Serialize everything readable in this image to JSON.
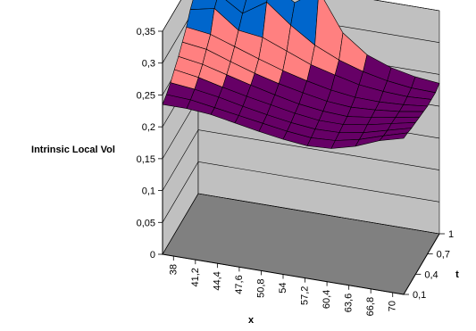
{
  "chart_data": {
    "type": "surface",
    "title": "",
    "zlabel": "Intrinsic Local Vol",
    "xlabel": "x",
    "tlabel": "t",
    "x": [
      38,
      41.2,
      44.4,
      47.6,
      50.8,
      54,
      57.2,
      60.4,
      63.6,
      66.8,
      70
    ],
    "x_tick_labels": [
      "38",
      "41,2",
      "44,4",
      "47,6",
      "50,8",
      "54",
      "57,2",
      "60,4",
      "63,6",
      "66,8",
      "70"
    ],
    "t": [
      0.1,
      0.2,
      0.3,
      0.4,
      0.5,
      0.6,
      0.7,
      0.8,
      0.9,
      1.0
    ],
    "t_tick_labels": [
      "0,1",
      "0,4",
      "0,7",
      "1"
    ],
    "zlim": [
      0,
      0.35
    ],
    "z_ticks": [
      0,
      0.05,
      0.1,
      0.15,
      0.2,
      0.25,
      0.3,
      0.35
    ],
    "z_tick_labels": [
      "0",
      "0,05",
      "0,1",
      "0,15",
      "0,2",
      "0,25",
      "0,3",
      "0,35"
    ],
    "z_rows_by_t": [
      [
        0.235,
        0.235,
        0.232,
        0.225,
        0.218,
        0.212,
        0.208,
        0.21,
        0.22,
        0.235,
        0.245
      ],
      [
        0.24,
        0.238,
        0.232,
        0.226,
        0.22,
        0.214,
        0.21,
        0.212,
        0.22,
        0.232,
        0.243
      ],
      [
        0.248,
        0.244,
        0.238,
        0.23,
        0.223,
        0.217,
        0.213,
        0.214,
        0.22,
        0.23,
        0.24
      ],
      [
        0.258,
        0.252,
        0.243,
        0.235,
        0.228,
        0.221,
        0.216,
        0.216,
        0.222,
        0.23,
        0.238
      ],
      [
        0.268,
        0.262,
        0.252,
        0.242,
        0.233,
        0.225,
        0.22,
        0.218,
        0.223,
        0.229,
        0.236
      ],
      [
        0.28,
        0.275,
        0.262,
        0.25,
        0.24,
        0.232,
        0.225,
        0.222,
        0.224,
        0.228,
        0.234
      ],
      [
        0.293,
        0.288,
        0.275,
        0.262,
        0.25,
        0.24,
        0.232,
        0.227,
        0.226,
        0.228,
        0.232
      ],
      [
        0.31,
        0.318,
        0.29,
        0.285,
        0.27,
        0.255,
        0.245,
        0.236,
        0.232,
        0.23,
        0.232
      ],
      [
        0.322,
        0.33,
        0.306,
        0.33,
        0.3,
        0.275,
        0.258,
        0.246,
        0.238,
        0.233,
        0.232
      ],
      [
        0.335,
        0.345,
        0.318,
        0.348,
        0.325,
        0.35,
        0.29,
        0.262,
        0.248,
        0.24,
        0.236
      ]
    ],
    "color_bands": [
      {
        "from": 0.0,
        "to": 0.25,
        "color": "#660066"
      },
      {
        "from": 0.25,
        "to": 0.3,
        "color": "#ff8080"
      },
      {
        "from": 0.3,
        "to": 0.35,
        "color": "#0066cc"
      }
    ],
    "walls": {
      "back": "#c0c0c0",
      "side": "#c0c0c0",
      "floor": "#808080"
    },
    "gridlines": true,
    "legend": "none"
  }
}
